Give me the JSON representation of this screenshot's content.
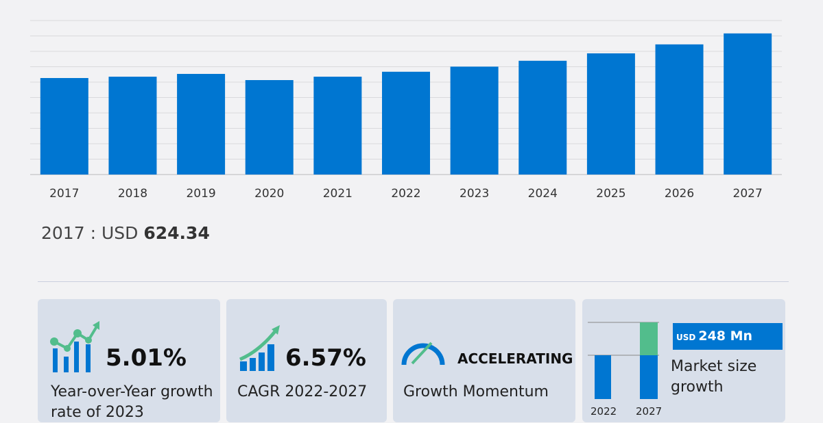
{
  "chart_data": {
    "type": "bar",
    "categories": [
      "2017",
      "2018",
      "2019",
      "2020",
      "2021",
      "2022",
      "2023",
      "2024",
      "2025",
      "2026",
      "2027"
    ],
    "values": [
      624.34,
      633,
      651,
      611,
      633,
      665,
      698,
      736,
      784,
      842,
      913
    ],
    "ylim": [
      0,
      1000
    ],
    "grid": true,
    "bar_color": "#0076d1"
  },
  "selected": {
    "year": "2017",
    "sep": " : ",
    "currency": "USD",
    "value": "624.34"
  },
  "cards": [
    {
      "value": "5.01%",
      "label": "Year-over-Year growth rate of 2023",
      "icon": "growth-chart-icon"
    },
    {
      "value": "6.57%",
      "label": "CAGR  2022-2027",
      "icon": "rising-bars-icon"
    },
    {
      "value": "ACCELERATING",
      "label": "Growth Momentum",
      "icon": "speedometer-icon"
    },
    {
      "currency": "USD",
      "value": "248 Mn",
      "label": "Market size growth",
      "years": [
        "2022",
        "2027"
      ],
      "icon": "market-growth-bars-icon"
    }
  ],
  "colors": {
    "accent": "#0076d1",
    "green": "#52bd8c",
    "card": "#d8dfea"
  }
}
